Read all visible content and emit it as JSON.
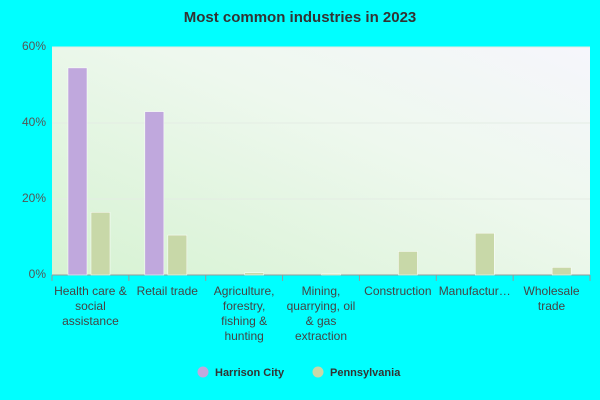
{
  "chart_data": {
    "type": "bar",
    "title": "Most common industries in 2023",
    "categories": [
      "Health care & social assistance",
      "Retail trade",
      "Agriculture, forestry, fishing & hunting",
      "Mining, quarrying, oil & gas extraction",
      "Construction",
      "Manufactur…",
      "Wholesale trade"
    ],
    "series": [
      {
        "name": "Harrison City",
        "color": "#c0a8dd",
        "values": [
          54.5,
          43,
          0,
          0,
          0,
          0,
          0
        ]
      },
      {
        "name": "Pennsylvania",
        "color": "#c8d8a8",
        "values": [
          16.5,
          10.5,
          0.6,
          0.3,
          6.2,
          11,
          2
        ]
      }
    ],
    "ylim": [
      0,
      60
    ],
    "yticks": [
      {
        "value": 0,
        "label": "0%"
      },
      {
        "value": 20,
        "label": "20%"
      },
      {
        "value": 40,
        "label": "40%"
      },
      {
        "value": 60,
        "label": "60%"
      }
    ],
    "grid": true
  }
}
